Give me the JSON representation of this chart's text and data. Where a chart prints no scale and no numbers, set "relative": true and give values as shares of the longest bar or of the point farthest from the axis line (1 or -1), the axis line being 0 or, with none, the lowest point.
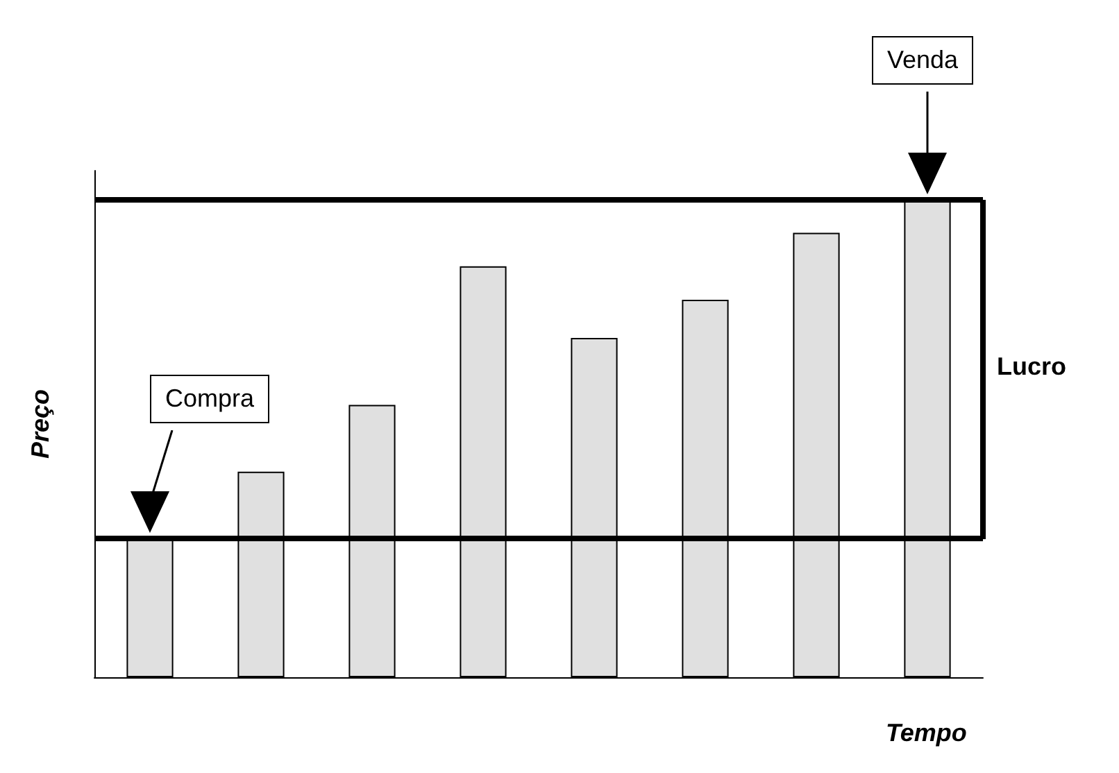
{
  "chart_data": {
    "type": "bar",
    "relative": true,
    "xlabel": "Tempo",
    "ylabel": "Preço",
    "categories": [
      null,
      null,
      null,
      null,
      null,
      null,
      null,
      null
    ],
    "values": [
      0.29,
      0.43,
      0.57,
      0.86,
      0.71,
      0.79,
      0.93,
      1
    ],
    "color": "#e0e0e0",
    "ref_lines": [
      {
        "axis": "y",
        "value": 0.29
      },
      {
        "axis": "y",
        "value": 1
      }
    ],
    "annotations": [
      "Compra",
      "Venda",
      "Lucro"
    ]
  }
}
